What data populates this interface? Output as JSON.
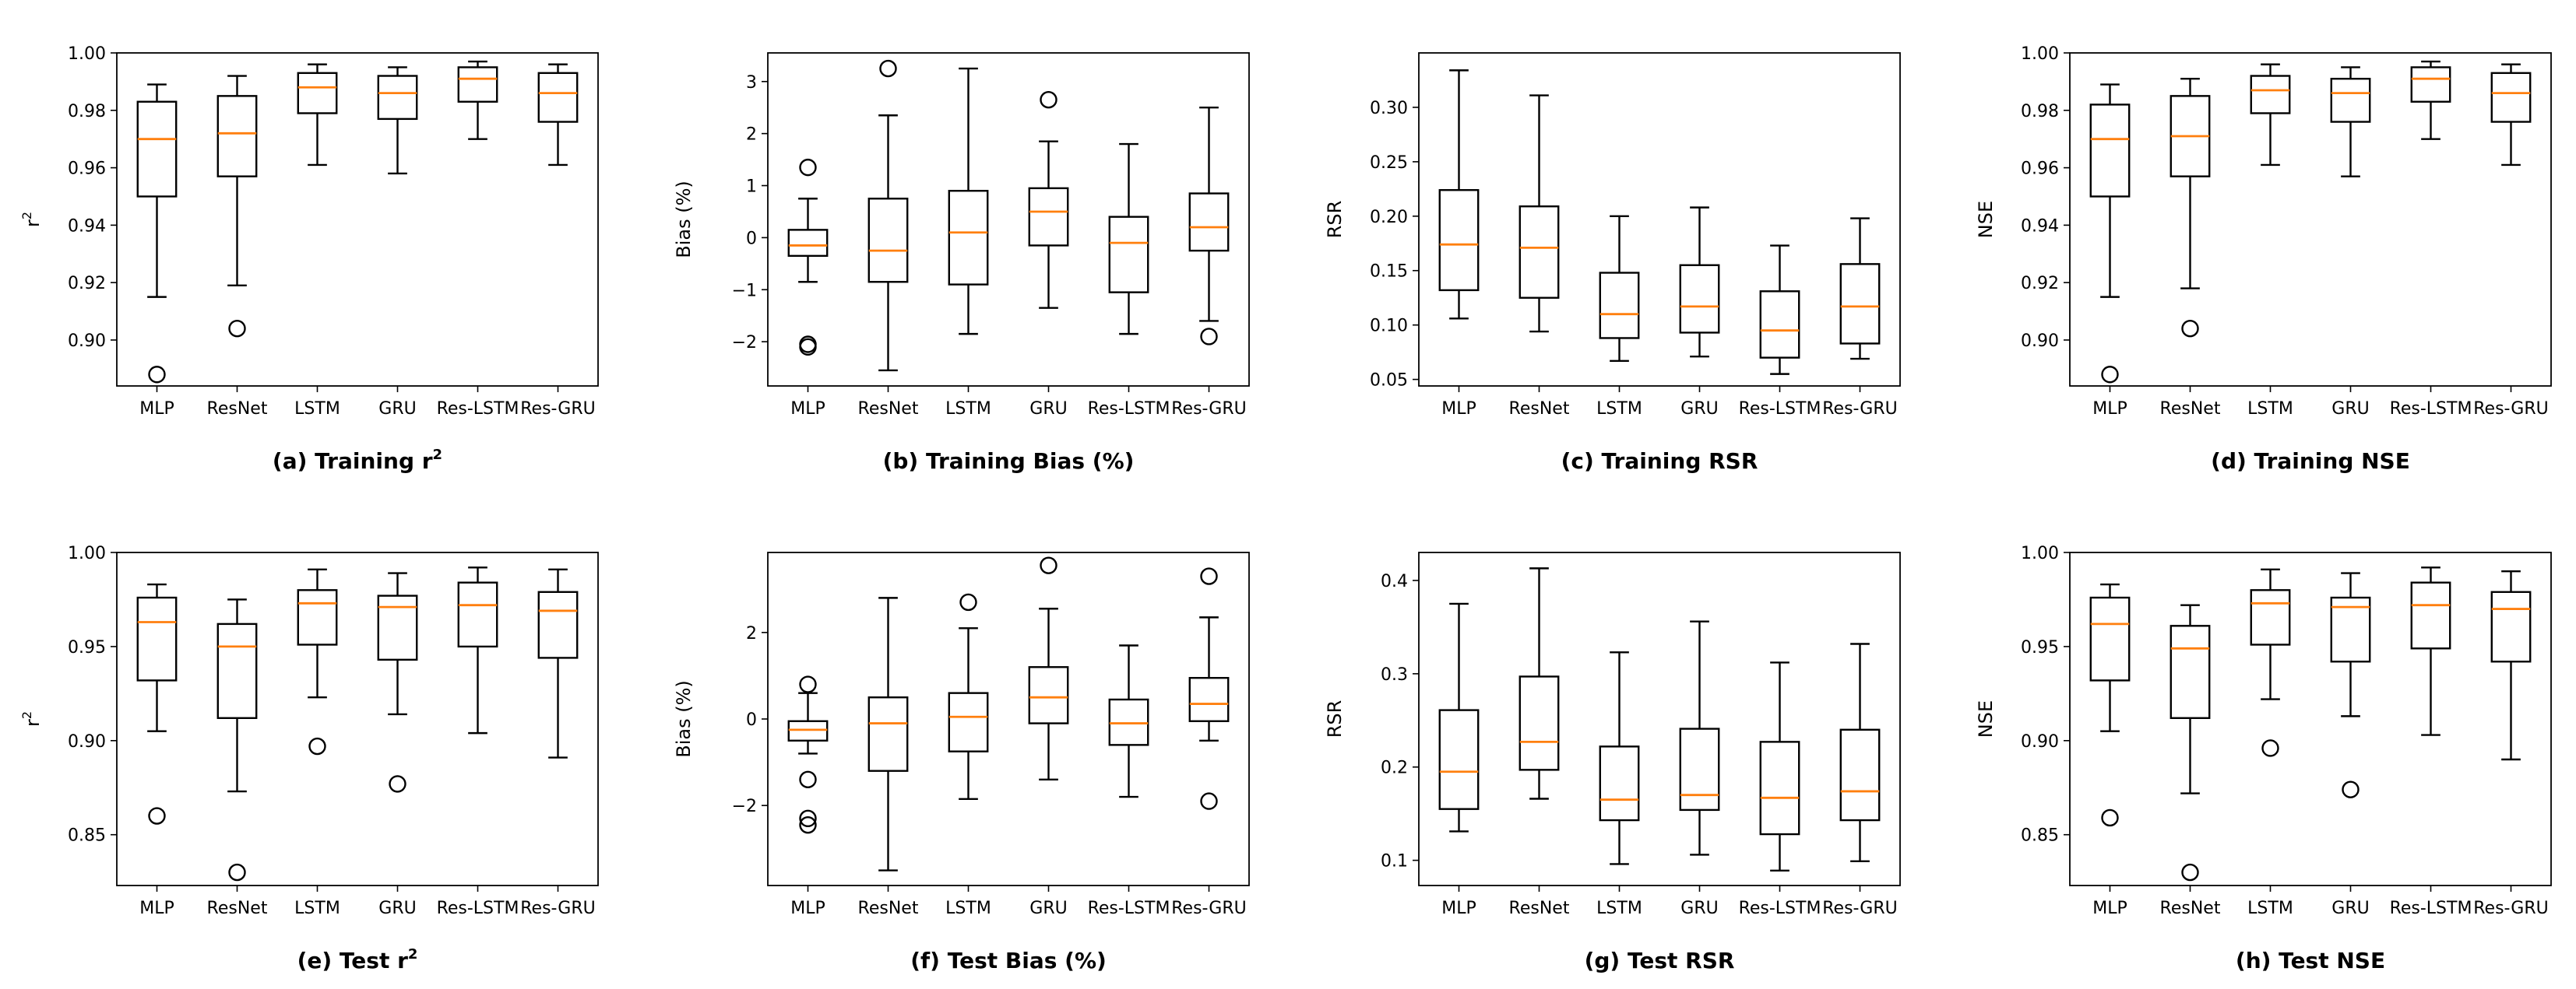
{
  "figure": {
    "colors": {
      "median": "#ff7f0e",
      "box": "#000000",
      "background": "#ffffff"
    },
    "panels": [
      {
        "id": "a",
        "caption": "(a) Training r",
        "caption_sup": "2",
        "ylabel": "r",
        "ylabel_sup": "2",
        "ylim": [
          0.884,
          1.0
        ],
        "yticks": [
          0.9,
          0.92,
          0.94,
          0.96,
          0.98,
          1.0
        ],
        "ytick_labels": [
          "0.90",
          "0.92",
          "0.94",
          "0.96",
          "0.98",
          "1.00"
        ]
      },
      {
        "id": "b",
        "caption": "(b) Training Bias (%)",
        "ylabel": "Bias (%)",
        "ylim": [
          -2.85,
          3.55
        ],
        "yticks": [
          -2,
          -1,
          0,
          1,
          2,
          3
        ],
        "ytick_labels": [
          "−2",
          "−1",
          "0",
          "1",
          "2",
          "3"
        ]
      },
      {
        "id": "c",
        "caption": "(c) Training RSR",
        "ylabel": "RSR",
        "ylim": [
          0.044,
          0.35
        ],
        "yticks": [
          0.05,
          0.1,
          0.15,
          0.2,
          0.25,
          0.3
        ],
        "ytick_labels": [
          "0.05",
          "0.10",
          "0.15",
          "0.20",
          "0.25",
          "0.30"
        ]
      },
      {
        "id": "d",
        "caption": "(d) Training NSE",
        "ylabel": "NSE",
        "ylim": [
          0.884,
          1.0
        ],
        "yticks": [
          0.9,
          0.92,
          0.94,
          0.96,
          0.98,
          1.0
        ],
        "ytick_labels": [
          "0.90",
          "0.92",
          "0.94",
          "0.96",
          "0.98",
          "1.00"
        ]
      },
      {
        "id": "e",
        "caption": "(e) Test r",
        "caption_sup": "2",
        "ylabel": "r",
        "ylabel_sup": "2",
        "ylim": [
          0.823,
          1.0
        ],
        "yticks": [
          0.85,
          0.9,
          0.95,
          1.0
        ],
        "ytick_labels": [
          "0.85",
          "0.90",
          "0.95",
          "1.00"
        ]
      },
      {
        "id": "f",
        "caption": "(f) Test Bias (%)",
        "ylabel": "Bias (%)",
        "ylim": [
          -3.85,
          3.85
        ],
        "yticks": [
          -2,
          0,
          2
        ],
        "ytick_labels": [
          "−2",
          "0",
          "2"
        ]
      },
      {
        "id": "g",
        "caption": "(g) Test RSR",
        "ylabel": "RSR",
        "ylim": [
          0.073,
          0.43
        ],
        "yticks": [
          0.1,
          0.2,
          0.3,
          0.4
        ],
        "ytick_labels": [
          "0.1",
          "0.2",
          "0.3",
          "0.4"
        ]
      },
      {
        "id": "h",
        "caption": "(h) Test NSE",
        "ylabel": "NSE",
        "ylim": [
          0.823,
          1.0
        ],
        "yticks": [
          0.85,
          0.9,
          0.95,
          1.0
        ],
        "ytick_labels": [
          "0.85",
          "0.90",
          "0.95",
          "1.00"
        ]
      }
    ]
  },
  "chart_data": [
    {
      "type": "box",
      "title": "(a) Training r²",
      "ylabel": "r²",
      "categories": [
        "MLP",
        "ResNet",
        "LSTM",
        "GRU",
        "Res-LSTM",
        "Res-GRU"
      ],
      "boxes": [
        {
          "whislo": 0.915,
          "q1": 0.95,
          "med": 0.97,
          "q3": 0.983,
          "whishi": 0.989,
          "fliers": [
            0.888
          ]
        },
        {
          "whislo": 0.919,
          "q1": 0.957,
          "med": 0.972,
          "q3": 0.985,
          "whishi": 0.992,
          "fliers": [
            0.904
          ]
        },
        {
          "whislo": 0.961,
          "q1": 0.979,
          "med": 0.988,
          "q3": 0.993,
          "whishi": 0.996,
          "fliers": []
        },
        {
          "whislo": 0.958,
          "q1": 0.977,
          "med": 0.986,
          "q3": 0.992,
          "whishi": 0.995,
          "fliers": []
        },
        {
          "whislo": 0.97,
          "q1": 0.983,
          "med": 0.991,
          "q3": 0.995,
          "whishi": 0.997,
          "fliers": []
        },
        {
          "whislo": 0.961,
          "q1": 0.976,
          "med": 0.986,
          "q3": 0.993,
          "whishi": 0.996,
          "fliers": []
        }
      ]
    },
    {
      "type": "box",
      "title": "(b) Training Bias (%)",
      "ylabel": "Bias (%)",
      "categories": [
        "MLP",
        "ResNet",
        "LSTM",
        "GRU",
        "Res-LSTM",
        "Res-GRU"
      ],
      "boxes": [
        {
          "whislo": -0.85,
          "q1": -0.35,
          "med": -0.15,
          "q3": 0.15,
          "whishi": 0.75,
          "fliers": [
            1.35,
            -2.05,
            -2.1
          ]
        },
        {
          "whislo": -2.55,
          "q1": -0.85,
          "med": -0.25,
          "q3": 0.75,
          "whishi": 2.35,
          "fliers": [
            3.25
          ]
        },
        {
          "whislo": -1.85,
          "q1": -0.9,
          "med": 0.1,
          "q3": 0.9,
          "whishi": 3.25,
          "fliers": []
        },
        {
          "whislo": -1.35,
          "q1": -0.15,
          "med": 0.5,
          "q3": 0.95,
          "whishi": 1.85,
          "fliers": [
            2.65
          ]
        },
        {
          "whislo": -1.85,
          "q1": -1.05,
          "med": -0.1,
          "q3": 0.4,
          "whishi": 1.8,
          "fliers": []
        },
        {
          "whislo": -1.6,
          "q1": -0.25,
          "med": 0.2,
          "q3": 0.85,
          "whishi": 2.5,
          "fliers": [
            -1.9
          ]
        }
      ]
    },
    {
      "type": "box",
      "title": "(c) Training RSR",
      "ylabel": "RSR",
      "categories": [
        "MLP",
        "ResNet",
        "LSTM",
        "GRU",
        "Res-LSTM",
        "Res-GRU"
      ],
      "boxes": [
        {
          "whislo": 0.106,
          "q1": 0.132,
          "med": 0.174,
          "q3": 0.224,
          "whishi": 0.334,
          "fliers": []
        },
        {
          "whislo": 0.094,
          "q1": 0.125,
          "med": 0.171,
          "q3": 0.209,
          "whishi": 0.311,
          "fliers": []
        },
        {
          "whislo": 0.067,
          "q1": 0.088,
          "med": 0.11,
          "q3": 0.148,
          "whishi": 0.2,
          "fliers": []
        },
        {
          "whislo": 0.071,
          "q1": 0.093,
          "med": 0.117,
          "q3": 0.155,
          "whishi": 0.208,
          "fliers": []
        },
        {
          "whislo": 0.055,
          "q1": 0.07,
          "med": 0.095,
          "q3": 0.131,
          "whishi": 0.173,
          "fliers": []
        },
        {
          "whislo": 0.069,
          "q1": 0.083,
          "med": 0.117,
          "q3": 0.156,
          "whishi": 0.198,
          "fliers": []
        }
      ]
    },
    {
      "type": "box",
      "title": "(d) Training NSE",
      "ylabel": "NSE",
      "categories": [
        "MLP",
        "ResNet",
        "LSTM",
        "GRU",
        "Res-LSTM",
        "Res-GRU"
      ],
      "boxes": [
        {
          "whislo": 0.915,
          "q1": 0.95,
          "med": 0.97,
          "q3": 0.982,
          "whishi": 0.989,
          "fliers": [
            0.888
          ]
        },
        {
          "whislo": 0.918,
          "q1": 0.957,
          "med": 0.971,
          "q3": 0.985,
          "whishi": 0.991,
          "fliers": [
            0.904
          ]
        },
        {
          "whislo": 0.961,
          "q1": 0.979,
          "med": 0.987,
          "q3": 0.992,
          "whishi": 0.996,
          "fliers": []
        },
        {
          "whislo": 0.957,
          "q1": 0.976,
          "med": 0.986,
          "q3": 0.991,
          "whishi": 0.995,
          "fliers": []
        },
        {
          "whislo": 0.97,
          "q1": 0.983,
          "med": 0.991,
          "q3": 0.995,
          "whishi": 0.997,
          "fliers": []
        },
        {
          "whislo": 0.961,
          "q1": 0.976,
          "med": 0.986,
          "q3": 0.993,
          "whishi": 0.996,
          "fliers": []
        }
      ]
    },
    {
      "type": "box",
      "title": "(e) Test r²",
      "ylabel": "r²",
      "categories": [
        "MLP",
        "ResNet",
        "LSTM",
        "GRU",
        "Res-LSTM",
        "Res-GRU"
      ],
      "boxes": [
        {
          "whislo": 0.905,
          "q1": 0.932,
          "med": 0.963,
          "q3": 0.976,
          "whishi": 0.983,
          "fliers": [
            0.86
          ]
        },
        {
          "whislo": 0.873,
          "q1": 0.912,
          "med": 0.95,
          "q3": 0.962,
          "whishi": 0.975,
          "fliers": [
            0.83
          ]
        },
        {
          "whislo": 0.923,
          "q1": 0.951,
          "med": 0.973,
          "q3": 0.98,
          "whishi": 0.991,
          "fliers": [
            0.897
          ]
        },
        {
          "whislo": 0.914,
          "q1": 0.943,
          "med": 0.971,
          "q3": 0.977,
          "whishi": 0.989,
          "fliers": [
            0.877
          ]
        },
        {
          "whislo": 0.904,
          "q1": 0.95,
          "med": 0.972,
          "q3": 0.984,
          "whishi": 0.992,
          "fliers": []
        },
        {
          "whislo": 0.891,
          "q1": 0.944,
          "med": 0.969,
          "q3": 0.979,
          "whishi": 0.991,
          "fliers": []
        }
      ]
    },
    {
      "type": "box",
      "title": "(f) Test Bias (%)",
      "ylabel": "Bias (%)",
      "categories": [
        "MLP",
        "ResNet",
        "LSTM",
        "GRU",
        "Res-LSTM",
        "Res-GRU"
      ],
      "boxes": [
        {
          "whislo": -0.8,
          "q1": -0.5,
          "med": -0.25,
          "q3": -0.05,
          "whishi": 0.6,
          "fliers": [
            0.8,
            -1.4,
            -2.3,
            -2.45
          ]
        },
        {
          "whislo": -3.5,
          "q1": -1.2,
          "med": -0.1,
          "q3": 0.5,
          "whishi": 2.8,
          "fliers": []
        },
        {
          "whislo": -1.85,
          "q1": -0.75,
          "med": 0.05,
          "q3": 0.6,
          "whishi": 2.1,
          "fliers": [
            2.7
          ]
        },
        {
          "whislo": -1.4,
          "q1": -0.1,
          "med": 0.5,
          "q3": 1.2,
          "whishi": 2.55,
          "fliers": [
            3.55
          ]
        },
        {
          "whislo": -1.8,
          "q1": -0.6,
          "med": -0.1,
          "q3": 0.45,
          "whishi": 1.7,
          "fliers": []
        },
        {
          "whislo": -0.5,
          "q1": -0.05,
          "med": 0.35,
          "q3": 0.95,
          "whishi": 2.35,
          "fliers": [
            3.3,
            -1.9
          ]
        }
      ]
    },
    {
      "type": "box",
      "title": "(g) Test RSR",
      "ylabel": "RSR",
      "categories": [
        "MLP",
        "ResNet",
        "LSTM",
        "GRU",
        "Res-LSTM",
        "Res-GRU"
      ],
      "boxes": [
        {
          "whislo": 0.131,
          "q1": 0.155,
          "med": 0.195,
          "q3": 0.261,
          "whishi": 0.375,
          "fliers": []
        },
        {
          "whislo": 0.166,
          "q1": 0.197,
          "med": 0.227,
          "q3": 0.297,
          "whishi": 0.413,
          "fliers": []
        },
        {
          "whislo": 0.096,
          "q1": 0.143,
          "med": 0.165,
          "q3": 0.222,
          "whishi": 0.323,
          "fliers": []
        },
        {
          "whislo": 0.106,
          "q1": 0.154,
          "med": 0.17,
          "q3": 0.241,
          "whishi": 0.356,
          "fliers": []
        },
        {
          "whislo": 0.089,
          "q1": 0.128,
          "med": 0.167,
          "q3": 0.227,
          "whishi": 0.312,
          "fliers": []
        },
        {
          "whislo": 0.099,
          "q1": 0.143,
          "med": 0.174,
          "q3": 0.24,
          "whishi": 0.332,
          "fliers": []
        }
      ]
    },
    {
      "type": "box",
      "title": "(h) Test NSE",
      "ylabel": "NSE",
      "categories": [
        "MLP",
        "ResNet",
        "LSTM",
        "GRU",
        "Res-LSTM",
        "Res-GRU"
      ],
      "boxes": [
        {
          "whislo": 0.905,
          "q1": 0.932,
          "med": 0.962,
          "q3": 0.976,
          "whishi": 0.983,
          "fliers": [
            0.859
          ]
        },
        {
          "whislo": 0.872,
          "q1": 0.912,
          "med": 0.949,
          "q3": 0.961,
          "whishi": 0.972,
          "fliers": [
            0.83
          ]
        },
        {
          "whislo": 0.922,
          "q1": 0.951,
          "med": 0.973,
          "q3": 0.98,
          "whishi": 0.991,
          "fliers": [
            0.896
          ]
        },
        {
          "whislo": 0.913,
          "q1": 0.942,
          "med": 0.971,
          "q3": 0.976,
          "whishi": 0.989,
          "fliers": [
            0.874
          ]
        },
        {
          "whislo": 0.903,
          "q1": 0.949,
          "med": 0.972,
          "q3": 0.984,
          "whishi": 0.992,
          "fliers": []
        },
        {
          "whislo": 0.89,
          "q1": 0.942,
          "med": 0.97,
          "q3": 0.979,
          "whishi": 0.99,
          "fliers": []
        }
      ]
    }
  ]
}
